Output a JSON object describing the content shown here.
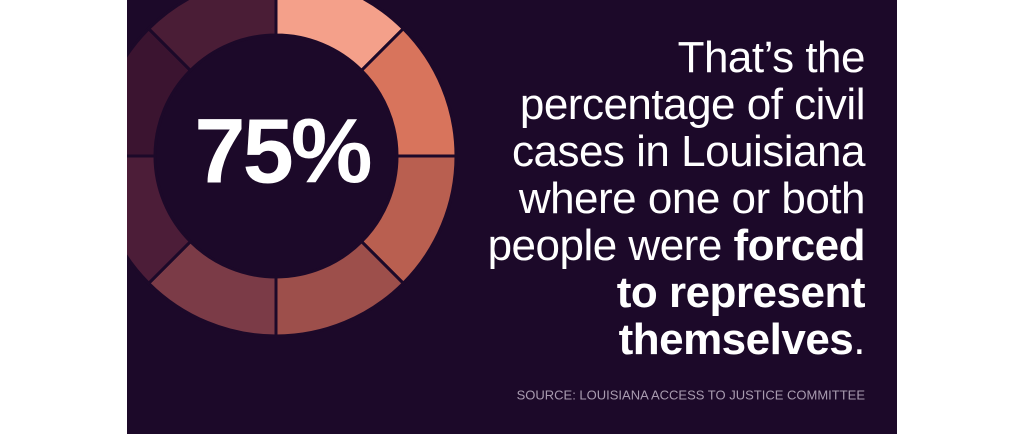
{
  "chart_data": {
    "type": "donut",
    "value": 75,
    "value_label": "75%",
    "colors": [
      "#f4a08a",
      "#d8745c",
      "#b95f50",
      "#9d4f4b",
      "#7b3b47",
      "#4c1d38",
      "#3b1430",
      "#4a1d36"
    ],
    "background": "#1c0929",
    "text_lines": [
      [
        {
          "text": "That’s the",
          "bold": false
        }
      ],
      [
        {
          "text": "percentage of civil",
          "bold": false
        }
      ],
      [
        {
          "text": "cases in Louisiana",
          "bold": false
        }
      ],
      [
        {
          "text": "where one or both",
          "bold": false
        }
      ],
      [
        {
          "text": "people were ",
          "bold": false
        },
        {
          "text": "forced",
          "bold": true
        }
      ],
      [
        {
          "text": "to represent",
          "bold": true
        }
      ],
      [
        {
          "text": "themselves",
          "bold": true
        },
        {
          "text": ".",
          "bold": false
        }
      ]
    ],
    "source": "SOURCE: LOUISIANA ACCESS TO JUSTICE COMMITTEE"
  }
}
